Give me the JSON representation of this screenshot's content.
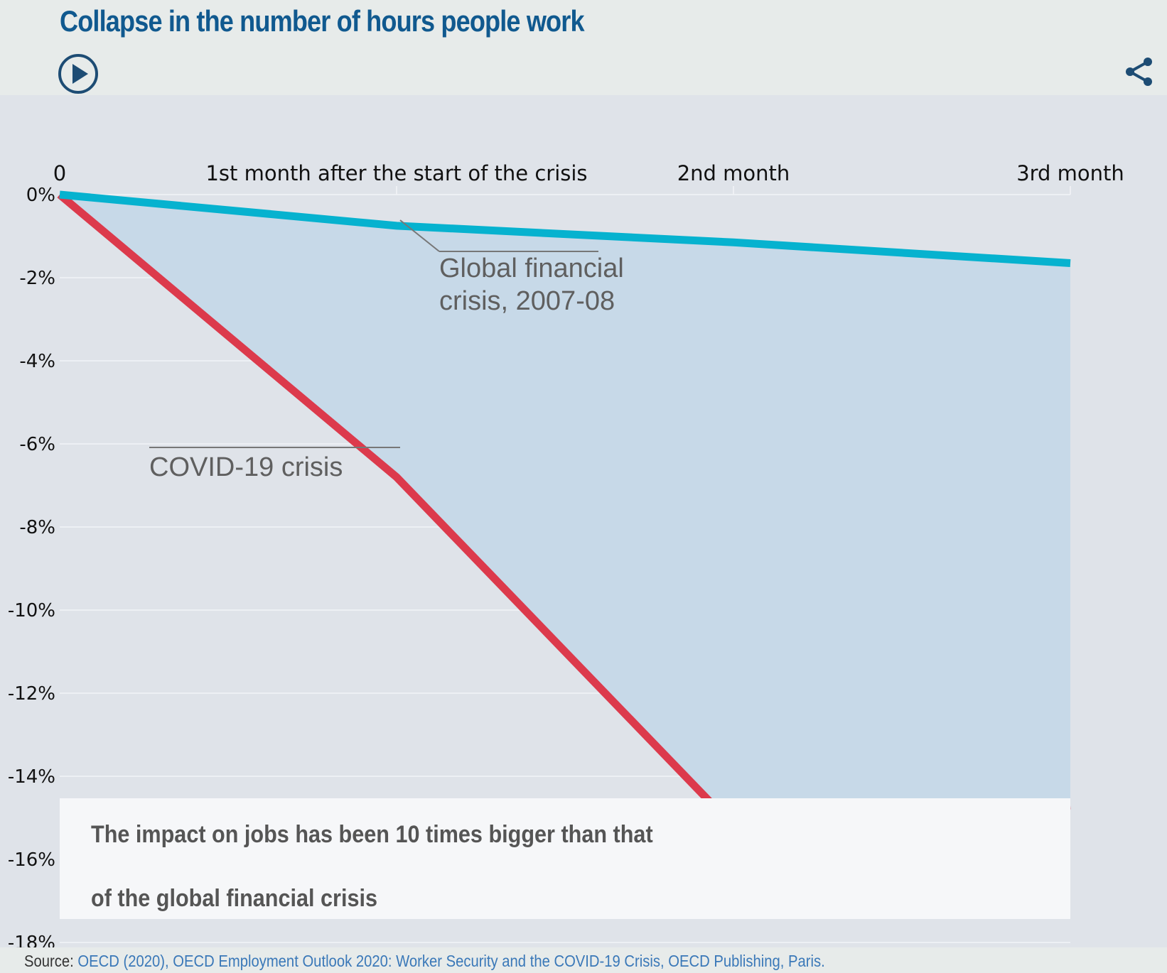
{
  "header": {
    "title": "Collapse in the number of hours people work",
    "play_icon": "play-circle-icon",
    "share_icon": "share-icon"
  },
  "colors": {
    "title": "#10598f",
    "covid_line": "#dc3a4c",
    "gfc_line": "#06b2cf",
    "fill_between": "#c7d9e8",
    "background": "#dfe3e9"
  },
  "chart_data": {
    "type": "line",
    "categories": [
      "0",
      "1st month after the start of the crisis",
      "2nd month",
      "3rd month"
    ],
    "x": [
      0,
      1,
      2,
      3
    ],
    "series": [
      {
        "name": "COVID-19 crisis",
        "values": [
          0,
          -6.8,
          -15.2,
          -14.7
        ]
      },
      {
        "name": "Global financial crisis, 2007-08",
        "values": [
          0,
          -0.75,
          -1.15,
          -1.65
        ]
      }
    ],
    "y_ticks": [
      "0%",
      "-2%",
      "-4%",
      "-6%",
      "-8%",
      "-10%",
      "-12%",
      "-14%",
      "-16%",
      "-18%"
    ],
    "ylim": [
      -18,
      0
    ],
    "x_axis_position": "top",
    "grid": true,
    "shaded_area_between_series": true,
    "annotations": {
      "covid": "COVID-19 crisis",
      "gfc_line1": "Global financial",
      "gfc_line2": "crisis, 2007-08"
    },
    "callout": {
      "line1": "The impact on jobs has been 10 times bigger than that",
      "line2": "of the global financial crisis"
    }
  },
  "source": {
    "label": "Source:",
    "link_text": "OECD (2020), OECD Employment Outlook 2020: Worker Security and the COVID-19 Crisis, OECD Publishing, Paris."
  }
}
